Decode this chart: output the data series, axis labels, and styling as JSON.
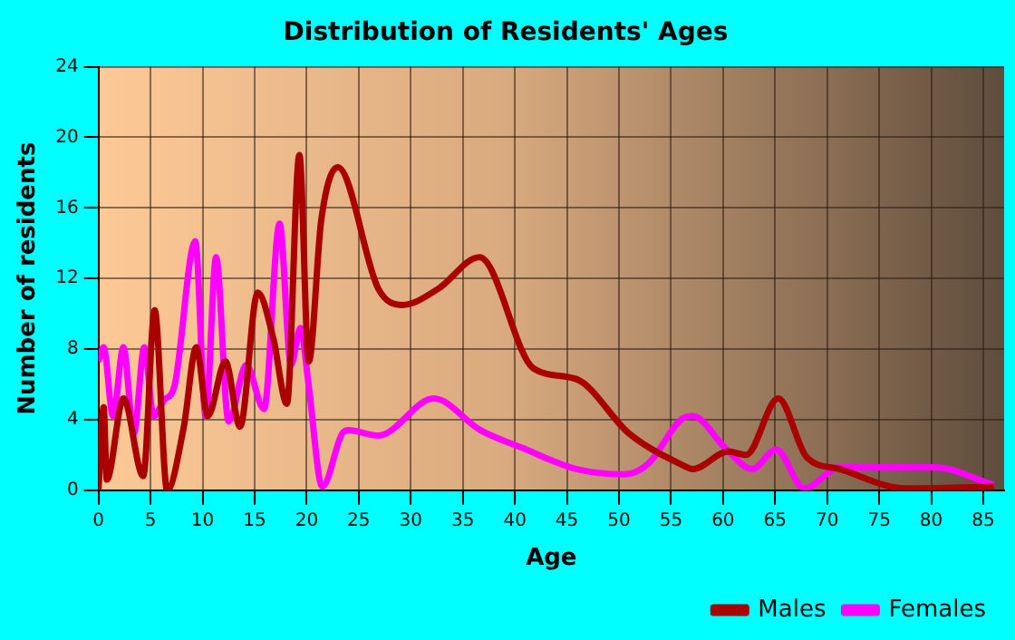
{
  "chart_data": {
    "type": "line",
    "title": "Distribution of Residents' Ages",
    "xlabel": "Age",
    "ylabel": "Number of residents",
    "xlim": [
      0,
      87
    ],
    "xticks": [
      0,
      5,
      10,
      15,
      20,
      25,
      30,
      35,
      40,
      45,
      50,
      55,
      60,
      65,
      70,
      75,
      80,
      85
    ],
    "ylim": [
      0,
      24
    ],
    "yticks": [
      0,
      4,
      8,
      12,
      16,
      20,
      24
    ],
    "grid": true,
    "legend": "bottom right",
    "marker": "none",
    "line_style": "solid",
    "series": [
      {
        "name": "Males",
        "color": "#aa0000",
        "x": [
          0,
          0.5,
          0.8,
          2.4,
          4.3,
          5.4,
          6.6,
          8.2,
          9.4,
          10.5,
          12.2,
          13.6,
          15.3,
          16.8,
          18.1,
          19.3,
          20.2,
          21.4,
          23,
          26.9,
          29.2,
          32.6,
          36.6,
          41.8,
          45.9,
          51,
          56.2,
          57.1,
          60.5,
          62.2,
          65.3,
          68,
          71.2,
          77.5,
          86
        ],
        "values": [
          0,
          4.7,
          0.6,
          5.2,
          0.8,
          10.2,
          0,
          3.6,
          8.1,
          4.2,
          7.3,
          3.6,
          11.2,
          8.6,
          4.9,
          19,
          7.3,
          15.3,
          18.3,
          11.4,
          10.5,
          11.4,
          13.2,
          6.9,
          6.3,
          3.2,
          1.4,
          1.2,
          2.2,
          2,
          5.2,
          1.9,
          1.2,
          0.1,
          0.2
        ]
      },
      {
        "name": "Females",
        "color": "#ff00ff",
        "x": [
          0,
          0.5,
          1.4,
          2.4,
          3.4,
          4.4,
          5.3,
          6.3,
          7.3,
          9.3,
          10.3,
          11.3,
          12.5,
          14.2,
          15.9,
          17.4,
          18.5,
          19.4,
          20.2,
          21.5,
          23.4,
          24,
          26.9,
          32.2,
          36.7,
          40.7,
          45.9,
          50.5,
          52.8,
          56.2,
          57.1,
          60.2,
          62.8,
          65.1,
          67.8,
          71.2,
          80.3,
          86
        ],
        "values": [
          7.3,
          8.1,
          4.2,
          8.1,
          3.2,
          8.1,
          4.2,
          5.1,
          5.9,
          14.1,
          4.2,
          13.2,
          3.9,
          7.1,
          4.6,
          15.1,
          7.1,
          9.2,
          5.9,
          0.2,
          3.2,
          3.4,
          3.1,
          5.2,
          3.4,
          2.4,
          1.2,
          0.9,
          1.5,
          4.1,
          4.2,
          2.4,
          1.2,
          2.3,
          0.1,
          1.3,
          1.3,
          0.3
        ]
      }
    ]
  }
}
